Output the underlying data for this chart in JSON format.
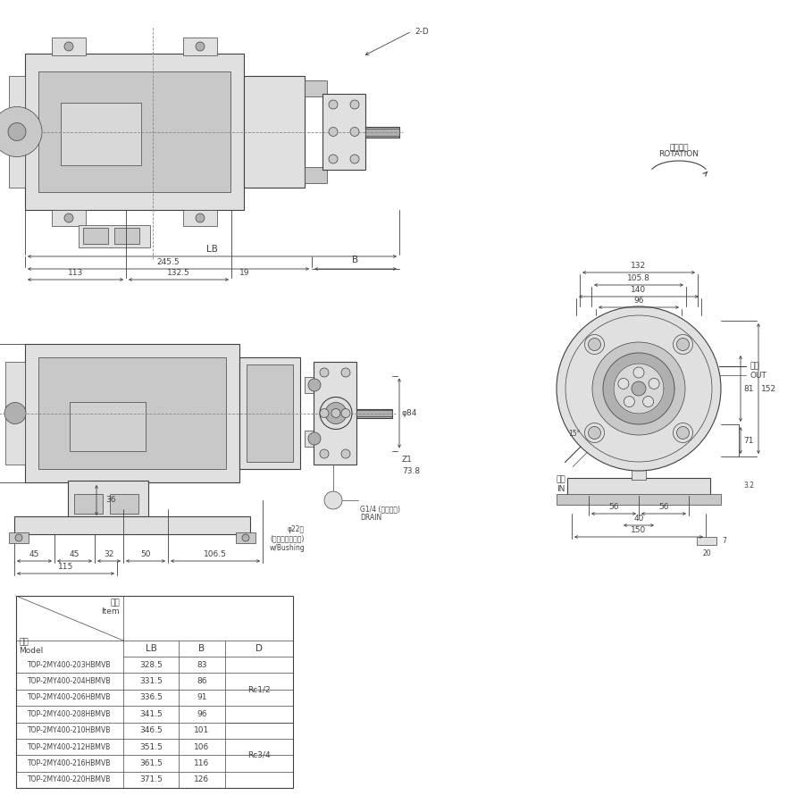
{
  "bg_color": "#ffffff",
  "line_color": "#404040",
  "dim_color": "#404040",
  "gray1": "#c8c8c8",
  "gray2": "#e0e0e0",
  "gray3": "#b0b0b0",
  "dash_color": "#888888",
  "table_models": [
    "TOP-2MY400-203HBMVB",
    "TOP-2MY400-204HBMVB",
    "TOP-2MY400-206HBMVB",
    "TOP-2MY400-208HBMVB",
    "TOP-2MY400-210HBMVB",
    "TOP-2MY400-212HBMVB",
    "TOP-2MY400-216HBMVB",
    "TOP-2MY400-220HBMVB"
  ],
  "table_lb": [
    "328.5",
    "331.5",
    "336.5",
    "341.5",
    "346.5",
    "351.5",
    "361.5",
    "371.5"
  ],
  "table_b": [
    "83",
    "86",
    "91",
    "96",
    "101",
    "106",
    "116",
    "126"
  ]
}
